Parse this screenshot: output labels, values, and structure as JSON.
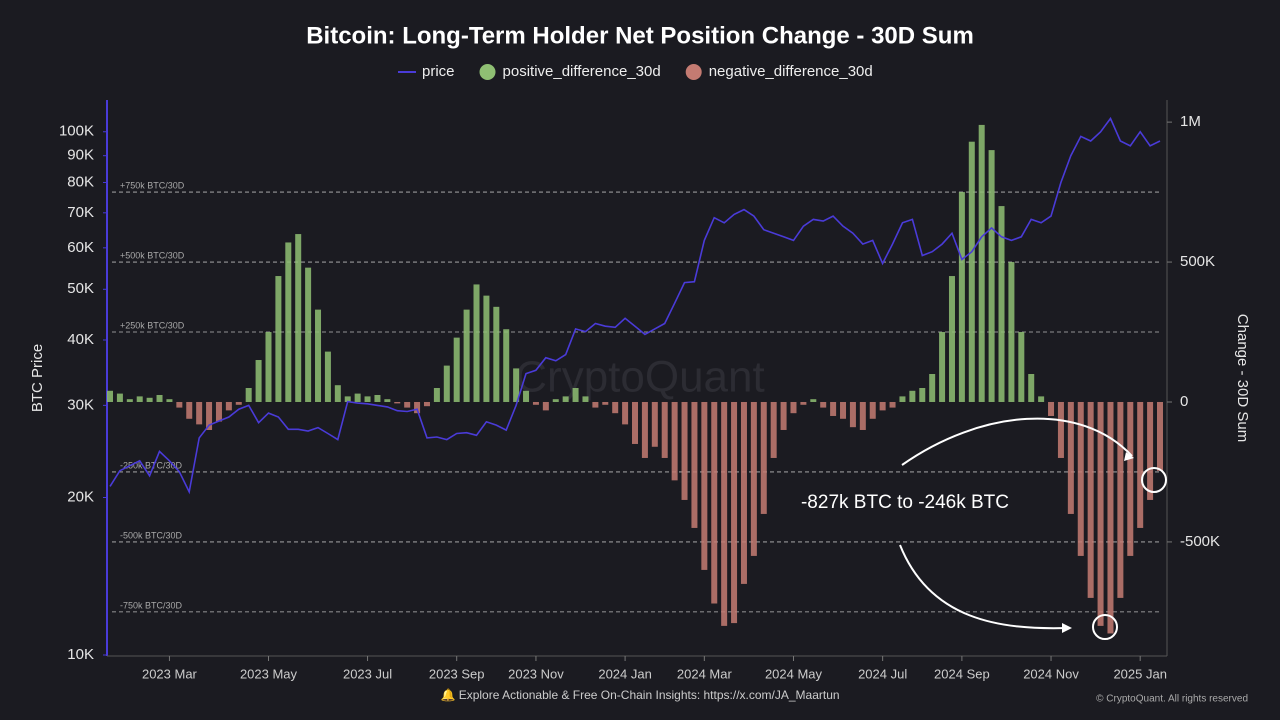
{
  "chart_data": {
    "type": "bar-line",
    "title": "Bitcoin: Long-Term Holder Net Position Change - 30D Sum",
    "y_label": "BTC Price",
    "y2_label": "Change - 30D Sum",
    "annotation": "-827k BTC to -246k BTC",
    "watermark": "CryptoQuant",
    "footer": "🔔 Explore Actionable & Free On-Chain Insights: https://x.com/JA_Maartun",
    "copyright": "© CryptoQuant. All rights reserved",
    "log_y": true,
    "categories": [
      null,
      null,
      null,
      null,
      null,
      null,
      "2023 Mar",
      null,
      null,
      null,
      null,
      null,
      null,
      null,
      null,
      null,
      "2023 May",
      null,
      null,
      null,
      null,
      null,
      null,
      null,
      null,
      null,
      "2023 Jul",
      null,
      null,
      null,
      null,
      null,
      null,
      null,
      null,
      "2023 Sep",
      null,
      null,
      null,
      null,
      null,
      null,
      null,
      "2023 Nov",
      null,
      null,
      null,
      null,
      null,
      null,
      null,
      null,
      "2024 Jan",
      null,
      null,
      null,
      null,
      null,
      null,
      null,
      "2024 Mar",
      null,
      null,
      null,
      null,
      null,
      null,
      null,
      null,
      "2024 May",
      null,
      null,
      null,
      null,
      null,
      null,
      null,
      null,
      "2024 Jul",
      null,
      null,
      null,
      null,
      null,
      null,
      null,
      "2024 Sep",
      null,
      null,
      null,
      null,
      null,
      null,
      null,
      null,
      "2024 Nov",
      null,
      null,
      null,
      null,
      null,
      null,
      null,
      null,
      "2025 Jan",
      null,
      null
    ],
    "ylim": [
      10000,
      115000
    ],
    "yticks": [
      {
        "value": 10000,
        "label": "10K"
      },
      {
        "value": 20000,
        "label": "20K"
      },
      {
        "value": 30000,
        "label": "30K"
      },
      {
        "value": 40000,
        "label": "40K"
      },
      {
        "value": 50000,
        "label": "50K"
      },
      {
        "value": 60000,
        "label": "60K"
      },
      {
        "value": 70000,
        "label": "70K"
      },
      {
        "value": 80000,
        "label": "80K"
      },
      {
        "value": 90000,
        "label": "90K"
      },
      {
        "value": 100000,
        "label": "100K"
      }
    ],
    "y2lim": [
      -904000,
      1079000
    ],
    "y2ticks": [
      {
        "value": -500000,
        "label": "-500K"
      },
      0,
      {
        "value": 500000,
        "label": "500K"
      },
      {
        "value": 1000000,
        "label": "1M"
      }
    ],
    "y2grid": [
      {
        "value": 750000,
        "label": "+750k BTC/30D"
      },
      {
        "value": 500000,
        "label": "+500k BTC/30D"
      },
      {
        "value": 250000,
        "label": "+250k BTC/30D"
      },
      {
        "value": -250000,
        "label": "-250k BTC/30D"
      },
      {
        "value": -500000,
        "label": "-500k BTC/30D"
      },
      {
        "value": -750000,
        "label": "-750k BTC/30D"
      }
    ],
    "series": [
      {
        "name": "price",
        "type": "line",
        "color": "#4a3bd8",
        "values": [
          21000,
          22500,
          23000,
          23500,
          22000,
          24500,
          23500,
          22400,
          20500,
          26000,
          27500,
          28000,
          28500,
          29500,
          30000,
          27800,
          29000,
          28500,
          27000,
          27000,
          26800,
          27200,
          26500,
          25800,
          30500,
          30300,
          30200,
          30000,
          29800,
          29300,
          29200,
          29500,
          26000,
          26100,
          25800,
          26500,
          26600,
          26300,
          27900,
          27500,
          26900,
          30000,
          34500,
          35000,
          37000,
          36500,
          37500,
          42000,
          41500,
          43000,
          42500,
          42300,
          44000,
          42500,
          41000,
          42000,
          43000,
          47000,
          51500,
          51700,
          62000,
          68500,
          67000,
          69500,
          71000,
          69000,
          65000,
          64000,
          63000,
          62000,
          66000,
          68000,
          67500,
          69000,
          66000,
          64000,
          61000,
          62000,
          56000,
          61000,
          67000,
          68000,
          58000,
          59000,
          61000,
          64000,
          57000,
          59000,
          63000,
          65500,
          63000,
          62000,
          63000,
          68000,
          67000,
          69000,
          80000,
          90000,
          98000,
          96000,
          100000,
          106000,
          96000,
          94000,
          100000,
          94000,
          96000
        ]
      },
      {
        "name": "positive_difference_30d",
        "type": "bar",
        "axis": "y2",
        "color": "#8fbf73",
        "values": [
          40000,
          30000,
          10000,
          20000,
          15000,
          25000,
          10000,
          null,
          null,
          null,
          null,
          null,
          null,
          null,
          50000,
          150000,
          250000,
          450000,
          570000,
          600000,
          480000,
          330000,
          180000,
          60000,
          20000,
          30000,
          20000,
          25000,
          10000,
          null,
          null,
          null,
          null,
          50000,
          130000,
          230000,
          330000,
          420000,
          380000,
          340000,
          260000,
          120000,
          40000,
          null,
          null,
          10000,
          20000,
          50000,
          20000,
          null,
          null,
          null,
          null,
          null,
          null,
          null,
          null,
          null,
          null,
          null,
          null,
          null,
          null,
          null,
          null,
          null,
          null,
          null,
          null,
          null,
          null,
          10000,
          null,
          null,
          null,
          null,
          null,
          null,
          null,
          null,
          20000,
          40000,
          50000,
          100000,
          250000,
          450000,
          750000,
          930000,
          990000,
          900000,
          700000,
          500000,
          250000,
          100000,
          20000,
          null,
          null,
          null,
          null,
          null,
          null,
          null,
          null,
          null,
          null,
          null,
          null
        ]
      },
      {
        "name": "negative_difference_30d",
        "type": "bar",
        "axis": "y2",
        "color": "#c47b72",
        "values": [
          null,
          null,
          null,
          null,
          null,
          null,
          null,
          -20000,
          -60000,
          -80000,
          -100000,
          -70000,
          -30000,
          -10000,
          null,
          null,
          null,
          null,
          null,
          null,
          null,
          null,
          null,
          null,
          null,
          null,
          null,
          null,
          null,
          -5000,
          -20000,
          -40000,
          -15000,
          null,
          null,
          null,
          null,
          null,
          null,
          null,
          null,
          null,
          null,
          -10000,
          -30000,
          null,
          null,
          null,
          null,
          -20000,
          -10000,
          -40000,
          -80000,
          -150000,
          -200000,
          -160000,
          -200000,
          -280000,
          -350000,
          -450000,
          -600000,
          -720000,
          -800000,
          -790000,
          -650000,
          -550000,
          -400000,
          -200000,
          -100000,
          -40000,
          -10000,
          null,
          -20000,
          -50000,
          -60000,
          -90000,
          -100000,
          -60000,
          -30000,
          -20000,
          null,
          null,
          null,
          null,
          null,
          null,
          null,
          null,
          null,
          null,
          null,
          null,
          null,
          null,
          null,
          -50000,
          -200000,
          -400000,
          -550000,
          -700000,
          -800000,
          -827000,
          -700000,
          -550000,
          -450000,
          -350000,
          -246000
        ]
      }
    ]
  }
}
